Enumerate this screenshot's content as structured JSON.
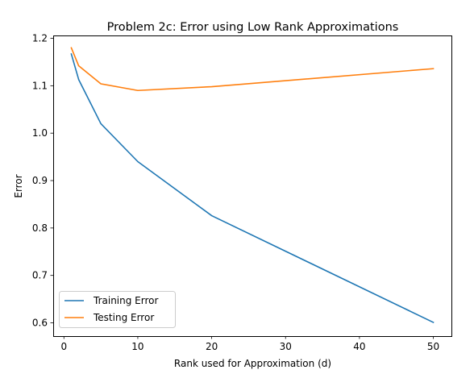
{
  "chart_data": {
    "type": "line",
    "title": "Problem 2c: Error using Low Rank Approximations",
    "xlabel": "Rank used for Approximation (d)",
    "ylabel": "Error",
    "xlim": [
      -1.45,
      52.45
    ],
    "ylim": [
      0.572,
      1.206
    ],
    "x_ticks": [
      0,
      10,
      20,
      30,
      40,
      50
    ],
    "y_ticks": [
      0.6,
      0.7,
      0.8,
      0.9,
      1.0,
      1.1,
      1.2
    ],
    "x_tick_labels": [
      "0",
      "10",
      "20",
      "30",
      "40",
      "50"
    ],
    "y_tick_labels": [
      "0.6",
      "0.7",
      "0.8",
      "0.9",
      "1.0",
      "1.1",
      "1.2"
    ],
    "grid": false,
    "legend_position": "lower-left",
    "x": [
      1,
      2,
      5,
      10,
      20,
      50
    ],
    "series": [
      {
        "name": "Training Error",
        "color": "#1f77b4",
        "values": [
          1.167,
          1.113,
          1.02,
          0.94,
          0.826,
          0.601
        ]
      },
      {
        "name": "Testing Error",
        "color": "#ff7f0e",
        "values": [
          1.18,
          1.142,
          1.104,
          1.09,
          1.098,
          1.136
        ]
      }
    ]
  }
}
